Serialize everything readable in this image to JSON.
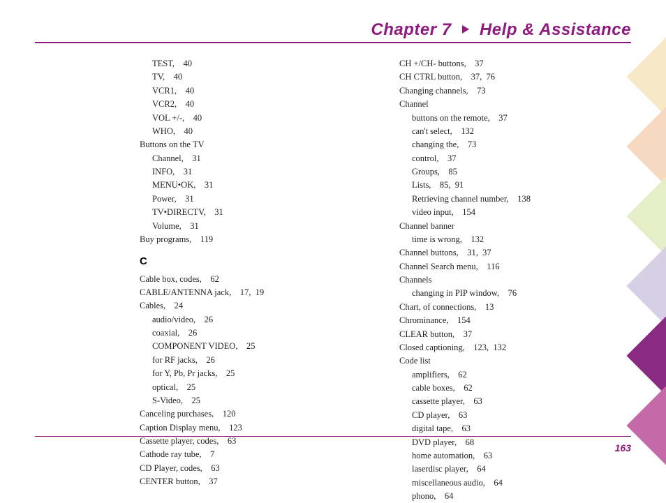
{
  "header": {
    "chapter": "Chapter 7",
    "section": "Help & Assistance",
    "triangle_color": "#8e1a7e"
  },
  "page_number": "163",
  "colors": {
    "accent": "#8e1a7e",
    "text": "#222222",
    "bg": "#ffffff",
    "deco": [
      "#f7e8c8",
      "#f6d9c0",
      "#e6eec8",
      "#d7cfe3",
      "#8a2b82",
      "#c46aa8"
    ]
  },
  "left_column": [
    {
      "t": "TEST,    40",
      "i": 1
    },
    {
      "t": "TV,    40",
      "i": 1
    },
    {
      "t": "VCR1,    40",
      "i": 1
    },
    {
      "t": "VCR2,    40",
      "i": 1
    },
    {
      "t": "VOL +/-,    40",
      "i": 1
    },
    {
      "t": "WHO,    40",
      "i": 1
    },
    {
      "t": "Buttons on the TV",
      "i": 0
    },
    {
      "t": "Channel,    31",
      "i": 1
    },
    {
      "t": "INFO,    31",
      "i": 1
    },
    {
      "t": "MENU•OK,    31",
      "i": 1
    },
    {
      "t": "Power,    31",
      "i": 1
    },
    {
      "t": "TV•DIRECTV,    31",
      "i": 1
    },
    {
      "t": "Volume,    31",
      "i": 1
    },
    {
      "t": "Buy programs,    119",
      "i": 0
    },
    {
      "letter": "C"
    },
    {
      "t": "Cable box, codes,    62",
      "i": 0
    },
    {
      "t": "CABLE/ANTENNA jack,    17,  19",
      "i": 0
    },
    {
      "t": "Cables,    24",
      "i": 0
    },
    {
      "t": "audio/video,    26",
      "i": 1
    },
    {
      "t": "coaxial,    26",
      "i": 1
    },
    {
      "t": "COMPONENT VIDEO,    25",
      "i": 1
    },
    {
      "t": "for RF jacks,    26",
      "i": 1
    },
    {
      "t": "for Y, Pb, Pr jacks,    25",
      "i": 1
    },
    {
      "t": "optical,    25",
      "i": 1
    },
    {
      "t": "S-Video,    25",
      "i": 1
    },
    {
      "t": "Canceling purchases,    120",
      "i": 0
    },
    {
      "t": "Caption Display menu,    123",
      "i": 0
    },
    {
      "t": "Cassette player, codes,    63",
      "i": 0
    },
    {
      "t": "Cathode ray tube,    7",
      "i": 0
    },
    {
      "t": "CD Player, codes,    63",
      "i": 0
    },
    {
      "t": "CENTER button,    37",
      "i": 0
    }
  ],
  "right_column": [
    {
      "t": "CH +/CH- buttons,    37",
      "i": 0
    },
    {
      "t": "CH CTRL button,    37,  76",
      "i": 0
    },
    {
      "t": "Changing channels,    73",
      "i": 0
    },
    {
      "t": "Channel",
      "i": 0
    },
    {
      "t": "buttons on the remote,    37",
      "i": 1
    },
    {
      "t": "can't select,    132",
      "i": 1
    },
    {
      "t": "changing the,    73",
      "i": 1
    },
    {
      "t": "control,    37",
      "i": 1
    },
    {
      "t": "Groups,    85",
      "i": 1
    },
    {
      "t": "Lists,    85,  91",
      "i": 1
    },
    {
      "t": "Retrieving channel number,    138",
      "i": 1
    },
    {
      "t": "video input,    154",
      "i": 1
    },
    {
      "t": "Channel banner",
      "i": 0
    },
    {
      "t": "time is wrong,    132",
      "i": 1
    },
    {
      "t": "Channel buttons,    31,  37",
      "i": 0
    },
    {
      "t": "Channel Search menu,    116",
      "i": 0
    },
    {
      "t": "Channels",
      "i": 0
    },
    {
      "t": "changing in PIP window,    76",
      "i": 1
    },
    {
      "t": "Chart, of connections,    13",
      "i": 0
    },
    {
      "t": "Chrominance,    154",
      "i": 0
    },
    {
      "t": "CLEAR button,    37",
      "i": 0
    },
    {
      "t": "Closed captioning,    123,  132",
      "i": 0
    },
    {
      "t": "Code list",
      "i": 0
    },
    {
      "t": "amplifiers,    62",
      "i": 1
    },
    {
      "t": "cable boxes,    62",
      "i": 1
    },
    {
      "t": "cassette player,    63",
      "i": 1
    },
    {
      "t": "CD player,    63",
      "i": 1
    },
    {
      "t": "digital tape,    63",
      "i": 1
    },
    {
      "t": "DVD player,    68",
      "i": 1
    },
    {
      "t": "home automation,    63",
      "i": 1
    },
    {
      "t": "laserdisc player,    64",
      "i": 1
    },
    {
      "t": "miscellaneous audio,    64",
      "i": 1
    },
    {
      "t": "phono,    64",
      "i": 1
    }
  ]
}
